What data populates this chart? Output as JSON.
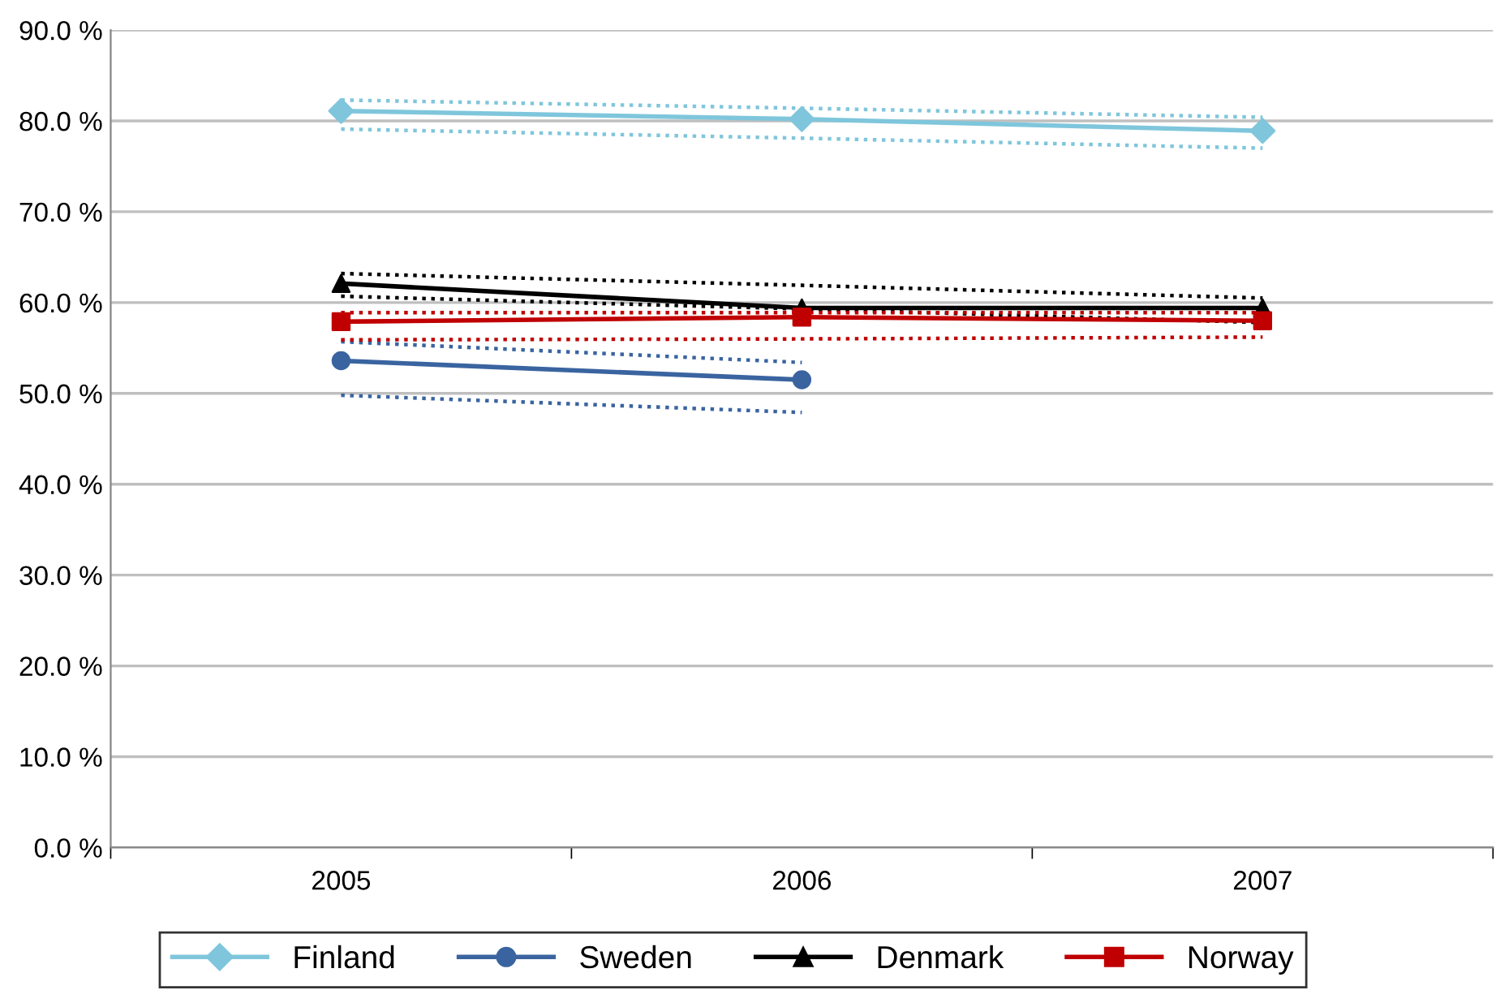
{
  "chart_data": {
    "type": "line",
    "categories": [
      "2005",
      "2006",
      "2007"
    ],
    "series": [
      {
        "color": "#7fc6dc",
        "line_style": "dotted",
        "marker": "none",
        "values": [
          82.3,
          81.4,
          80.4
        ]
      },
      {
        "color": "#7fc6dc",
        "line_style": "dotted",
        "marker": "none",
        "values": [
          79.1,
          78.1,
          77.0
        ]
      },
      {
        "color": "#3a64a0",
        "line_style": "dotted",
        "marker": "none",
        "values": [
          55.7,
          53.4,
          null
        ]
      },
      {
        "color": "#3a64a0",
        "line_style": "dotted",
        "marker": "none",
        "values": [
          49.8,
          47.9,
          null
        ]
      },
      {
        "color": "#000000",
        "line_style": "dotted",
        "marker": "none",
        "values": [
          63.2,
          61.9,
          60.5
        ]
      },
      {
        "color": "#000000",
        "line_style": "dotted",
        "marker": "none",
        "values": [
          60.7,
          59.3,
          57.8
        ]
      },
      {
        "color": "#c00000",
        "line_style": "dotted",
        "marker": "none",
        "values": [
          58.9,
          58.9,
          58.9
        ]
      },
      {
        "color": "#c00000",
        "line_style": "dotted",
        "marker": "none",
        "values": [
          55.9,
          56.0,
          56.2
        ]
      },
      {
        "name": "Finland",
        "color": "#7fc6dc",
        "marker": "diamond",
        "values": [
          81.1,
          80.2,
          78.9
        ]
      },
      {
        "name": "Sweden",
        "color": "#3a64a0",
        "marker": "circle",
        "values": [
          53.6,
          51.5,
          null
        ]
      },
      {
        "name": "Denmark",
        "color": "#000000",
        "marker": "triangle",
        "values": [
          62.1,
          59.4,
          59.4
        ]
      },
      {
        "name": "Norway",
        "color": "#c00000",
        "marker": "square",
        "values": [
          57.9,
          58.4,
          58.0
        ]
      }
    ],
    "ylim": [
      0,
      90
    ],
    "yticks": [
      {
        "value": 0,
        "label": "0.0 %"
      },
      {
        "value": 10,
        "label": "10.0 %"
      },
      {
        "value": 20,
        "label": "20.0 %"
      },
      {
        "value": 30,
        "label": "30.0 %"
      },
      {
        "value": 40,
        "label": "40.0 %"
      },
      {
        "value": 50,
        "label": "50.0 %"
      },
      {
        "value": 60,
        "label": "60.0 %"
      },
      {
        "value": 70,
        "label": "70.0 %"
      },
      {
        "value": 80,
        "label": "80.0 %"
      },
      {
        "value": 90,
        "label": "90.0 %"
      }
    ],
    "grid": "y",
    "legend": "bottom",
    "line_style": "solid"
  }
}
